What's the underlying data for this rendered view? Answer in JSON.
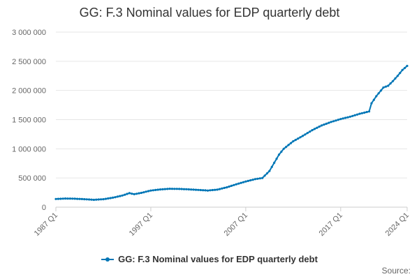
{
  "chart_data": {
    "type": "line",
    "title": "GG: F.3 Nominal values for EDP quarterly debt",
    "xlabel": "",
    "ylabel": "",
    "x_tick_labels": [
      "1987 Q1",
      "1997 Q1",
      "2007 Q1",
      "2017 Q1",
      "2024 Q1"
    ],
    "y_tick_labels": [
      "0",
      "500 000",
      "1 000 000",
      "1 500 000",
      "2 000 000",
      "2 500 000",
      "3 000 000"
    ],
    "ylim": [
      0,
      3000000
    ],
    "xlim": [
      1987.0,
      2024.0
    ],
    "grid": "horizontal",
    "legend_position": "bottom",
    "series": [
      {
        "name": "GG: F.3 Nominal values for EDP quarterly debt",
        "color": "#0076b6",
        "points": [
          [
            1987.0,
            140000
          ],
          [
            1988.0,
            148000
          ],
          [
            1989.0,
            145000
          ],
          [
            1990.0,
            136000
          ],
          [
            1991.0,
            126000
          ],
          [
            1992.0,
            136000
          ],
          [
            1993.0,
            162000
          ],
          [
            1994.0,
            200000
          ],
          [
            1994.75,
            240000
          ],
          [
            1995.25,
            222000
          ],
          [
            1996.0,
            245000
          ],
          [
            1997.0,
            285000
          ],
          [
            1998.0,
            303000
          ],
          [
            1999.0,
            315000
          ],
          [
            2000.0,
            312000
          ],
          [
            2001.0,
            305000
          ],
          [
            2002.0,
            295000
          ],
          [
            2003.0,
            285000
          ],
          [
            2004.0,
            300000
          ],
          [
            2005.0,
            340000
          ],
          [
            2006.0,
            392000
          ],
          [
            2007.0,
            440000
          ],
          [
            2008.0,
            480000
          ],
          [
            2008.75,
            500000
          ],
          [
            2009.5,
            620000
          ],
          [
            2010.0,
            760000
          ],
          [
            2010.5,
            900000
          ],
          [
            2011.0,
            1000000
          ],
          [
            2012.0,
            1130000
          ],
          [
            2013.0,
            1220000
          ],
          [
            2014.0,
            1320000
          ],
          [
            2015.0,
            1400000
          ],
          [
            2016.0,
            1460000
          ],
          [
            2017.0,
            1510000
          ],
          [
            2018.0,
            1550000
          ],
          [
            2019.0,
            1600000
          ],
          [
            2020.0,
            1640000
          ],
          [
            2020.25,
            1780000
          ],
          [
            2020.75,
            1900000
          ],
          [
            2021.5,
            2050000
          ],
          [
            2022.0,
            2080000
          ],
          [
            2022.5,
            2160000
          ],
          [
            2023.0,
            2250000
          ],
          [
            2023.5,
            2350000
          ],
          [
            2024.0,
            2420000
          ]
        ]
      }
    ]
  },
  "credit": "Source:"
}
